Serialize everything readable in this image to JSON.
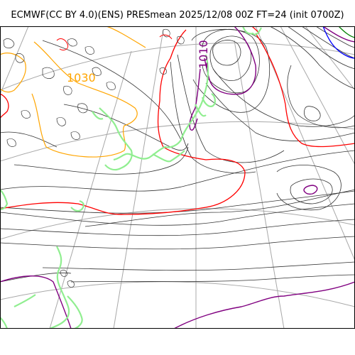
{
  "title": "ECMWF(CC BY 4.0)(ENS) PRESmean 2025/12/08 00Z FT=24 (init 0700Z)",
  "contour_labels": [
    "1030",
    "1010"
  ],
  "colors": {
    "graticule": "#a8a8a8",
    "isobar": "#333333",
    "coastline": "#90ee90",
    "isobar_1030": "#ffa500",
    "isobar_1020": "#ff0000",
    "isobar_1010": "#800080",
    "isobar_1000": "#008000",
    "isobar_990": "#0000ff"
  }
}
